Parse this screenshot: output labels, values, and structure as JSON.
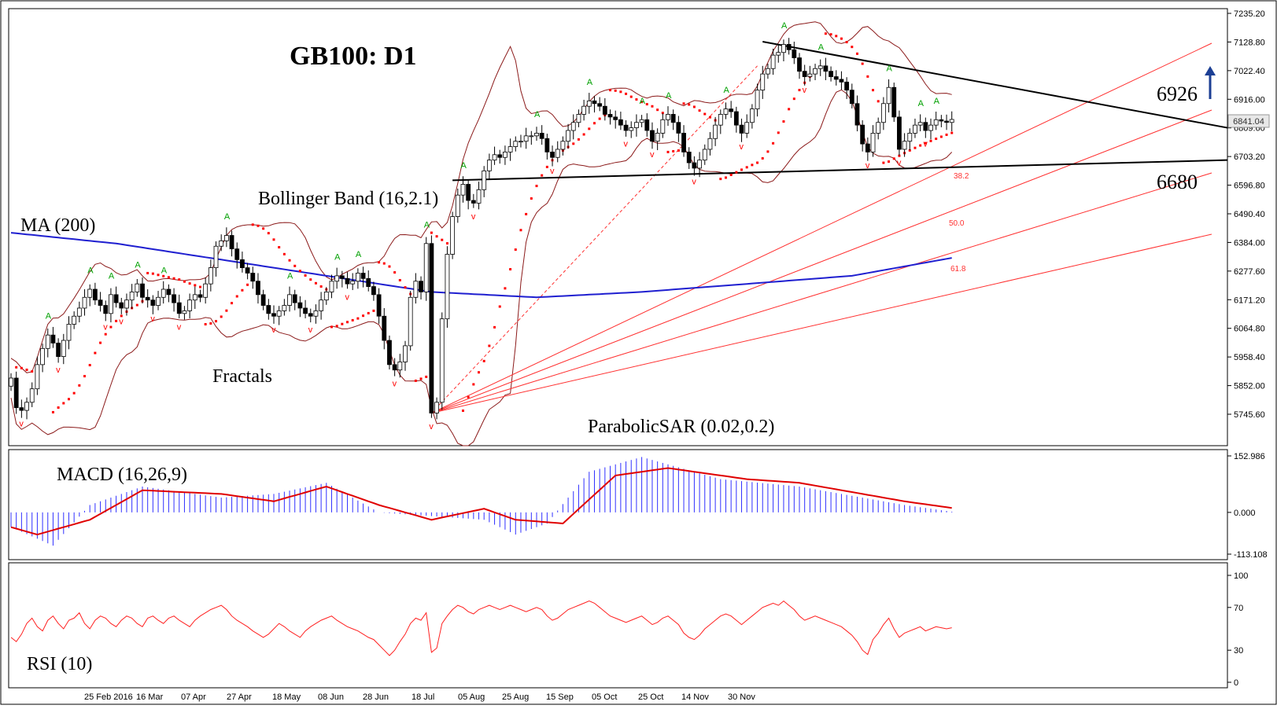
{
  "title": "GB100: D1",
  "annotations": {
    "ma": "MA (200)",
    "bollinger": "Bollinger Band (16,2.1)",
    "fractals": "Fractals",
    "psar": "ParabolicSAR (0.02,0.2)",
    "level_resistance": "6926",
    "level_support": "6680",
    "fib_382": "38.2",
    "fib_500": "50.0",
    "fib_618": "61.8"
  },
  "colors": {
    "candle_up": "#ffffff",
    "candle_down": "#000000",
    "ma": "#1f1fd0",
    "bollinger": "#8b1a1a",
    "psar": "#ff0000",
    "fractal_up": "#00a000",
    "fractal_down": "#ff0000",
    "macd_hist": "#3030ff",
    "macd_signal": "#e00000",
    "rsi": "#ff2020",
    "trendline": "#000000",
    "fan": "#ff3030",
    "arrow": "#1c3f94"
  },
  "chart_data": [
    {
      "type": "candlestick",
      "panel": "price",
      "title": "GB100: D1",
      "y_ticks": [
        "7235.20",
        "7128.80",
        "7022.40",
        "6916.00",
        "6809.60",
        "6703.20",
        "6596.80",
        "6490.40",
        "6384.00",
        "6277.60",
        "6171.20",
        "6064.80",
        "5958.40",
        "5852.00",
        "5745.60"
      ],
      "ylim": [
        5700,
        7235.2
      ],
      "current_price": "6841.04",
      "x_ticks": [
        "25 Feb 2016",
        "16 Mar",
        "07 Apr",
        "27 Apr",
        "18 May",
        "08 Jun",
        "28 Jun",
        "18 Jul",
        "05 Aug",
        "25 Aug",
        "15 Sep",
        "05 Oct",
        "25 Oct",
        "14 Nov",
        "30 Nov"
      ],
      "levels": {
        "resistance": 6926,
        "support": 6680
      },
      "close_series": [
        5880,
        5770,
        5760,
        5790,
        5840,
        5930,
        5990,
        6040,
        6010,
        5960,
        6020,
        6080,
        6110,
        6140,
        6180,
        6210,
        6170,
        6150,
        6120,
        6190,
        6160,
        6140,
        6170,
        6200,
        6230,
        6180,
        6170,
        6150,
        6180,
        6210,
        6190,
        6160,
        6120,
        6130,
        6170,
        6190,
        6180,
        6230,
        6290,
        6370,
        6390,
        6410,
        6360,
        6320,
        6290,
        6270,
        6240,
        6190,
        6150,
        6120,
        6110,
        6130,
        6150,
        6190,
        6160,
        6140,
        6120,
        6110,
        6130,
        6170,
        6200,
        6240,
        6260,
        6250,
        6230,
        6240,
        6270,
        6250,
        6220,
        6190,
        6110,
        6020,
        5930,
        5910,
        5940,
        6000,
        6180,
        6240,
        6200,
        6380,
        5750,
        5790,
        6100,
        6340,
        6480,
        6560,
        6600,
        6540,
        6530,
        6580,
        6650,
        6690,
        6710,
        6700,
        6720,
        6740,
        6760,
        6760,
        6780,
        6780,
        6790,
        6770,
        6720,
        6700,
        6730,
        6760,
        6800,
        6830,
        6860,
        6890,
        6910,
        6900,
        6890,
        6860,
        6850,
        6840,
        6820,
        6800,
        6810,
        6830,
        6840,
        6800,
        6760,
        6790,
        6840,
        6860,
        6830,
        6790,
        6720,
        6680,
        6660,
        6690,
        6730,
        6770,
        6820,
        6860,
        6880,
        6870,
        6820,
        6790,
        6830,
        6880,
        6950,
        7010,
        7030,
        7080,
        7090,
        7120,
        7100,
        7070,
        7020,
        7000,
        7010,
        7030,
        7040,
        7020,
        7000,
        6990,
        6980,
        6950,
        6900,
        6820,
        6750,
        6720,
        6790,
        6830,
        6900,
        6960,
        6850,
        6730,
        6760,
        6790,
        6820,
        6830,
        6800,
        6820,
        6840,
        6835,
        6830,
        6841
      ],
      "ma200_anchor": [
        [
          0,
          6420
        ],
        [
          20,
          6380
        ],
        [
          40,
          6320
        ],
        [
          60,
          6260
        ],
        [
          80,
          6200
        ],
        [
          100,
          6180
        ],
        [
          120,
          6200
        ],
        [
          140,
          6230
        ],
        [
          160,
          6260
        ],
        [
          180,
          6330
        ],
        [
          200,
          6420
        ],
        [
          235,
          6490
        ]
      ]
    },
    {
      "type": "histogram+line",
      "panel": "MACD",
      "title": "MACD (16,26,9)",
      "y_ticks": [
        "152.986",
        "0.000",
        "-113.108"
      ],
      "ylim": [
        -113.108,
        152.986
      ],
      "hist_anchor": [
        [
          0,
          -40
        ],
        [
          8,
          -90
        ],
        [
          15,
          20
        ],
        [
          25,
          70
        ],
        [
          40,
          40
        ],
        [
          50,
          50
        ],
        [
          60,
          80
        ],
        [
          70,
          0
        ],
        [
          80,
          -10
        ],
        [
          90,
          -20
        ],
        [
          96,
          -60
        ],
        [
          102,
          -30
        ],
        [
          110,
          110
        ],
        [
          120,
          150
        ],
        [
          135,
          90
        ],
        [
          150,
          70
        ],
        [
          170,
          20
        ],
        [
          180,
          0
        ],
        [
          190,
          60
        ],
        [
          200,
          80
        ],
        [
          210,
          10
        ],
        [
          215,
          -50
        ],
        [
          225,
          -40
        ]
      ],
      "signal_anchor": [
        [
          0,
          -40
        ],
        [
          5,
          -60
        ],
        [
          15,
          -20
        ],
        [
          25,
          60
        ],
        [
          40,
          50
        ],
        [
          50,
          30
        ],
        [
          60,
          70
        ],
        [
          70,
          20
        ],
        [
          80,
          -20
        ],
        [
          90,
          10
        ],
        [
          96,
          -20
        ],
        [
          105,
          -30
        ],
        [
          115,
          100
        ],
        [
          125,
          120
        ],
        [
          140,
          90
        ],
        [
          150,
          80
        ],
        [
          170,
          30
        ],
        [
          180,
          10
        ],
        [
          190,
          40
        ],
        [
          200,
          70
        ],
        [
          210,
          40
        ],
        [
          215,
          -20
        ],
        [
          225,
          -40
        ]
      ]
    },
    {
      "type": "line",
      "panel": "RSI",
      "title": "RSI (10)",
      "y_ticks": [
        "100",
        "70",
        "30",
        "0"
      ],
      "ylim": [
        0,
        100
      ],
      "values": [
        42,
        38,
        45,
        55,
        60,
        52,
        48,
        58,
        62,
        55,
        50,
        58,
        60,
        65,
        55,
        50,
        58,
        62,
        60,
        55,
        52,
        58,
        62,
        60,
        55,
        52,
        60,
        62,
        58,
        55,
        60,
        62,
        58,
        55,
        52,
        58,
        62,
        65,
        68,
        70,
        72,
        68,
        62,
        58,
        55,
        52,
        48,
        45,
        42,
        45,
        50,
        55,
        52,
        48,
        45,
        42,
        48,
        52,
        55,
        58,
        60,
        62,
        58,
        55,
        52,
        50,
        48,
        45,
        42,
        40,
        35,
        30,
        25,
        30,
        38,
        45,
        55,
        60,
        58,
        65,
        28,
        32,
        55,
        62,
        68,
        72,
        70,
        66,
        64,
        68,
        70,
        72,
        70,
        68,
        70,
        72,
        70,
        68,
        66,
        68,
        70,
        68,
        62,
        58,
        60,
        64,
        68,
        70,
        72,
        74,
        76,
        74,
        70,
        66,
        62,
        60,
        58,
        56,
        58,
        60,
        62,
        58,
        54,
        56,
        60,
        62,
        58,
        54,
        46,
        42,
        40,
        44,
        50,
        54,
        58,
        62,
        64,
        62,
        58,
        54,
        58,
        62,
        66,
        70,
        72,
        74,
        72,
        76,
        72,
        68,
        62,
        58,
        60,
        62,
        60,
        58,
        56,
        54,
        52,
        48,
        44,
        38,
        30,
        26,
        40,
        46,
        54,
        60,
        50,
        42,
        46,
        48,
        50,
        52,
        48,
        50,
        52,
        51,
        50,
        51
      ]
    }
  ]
}
